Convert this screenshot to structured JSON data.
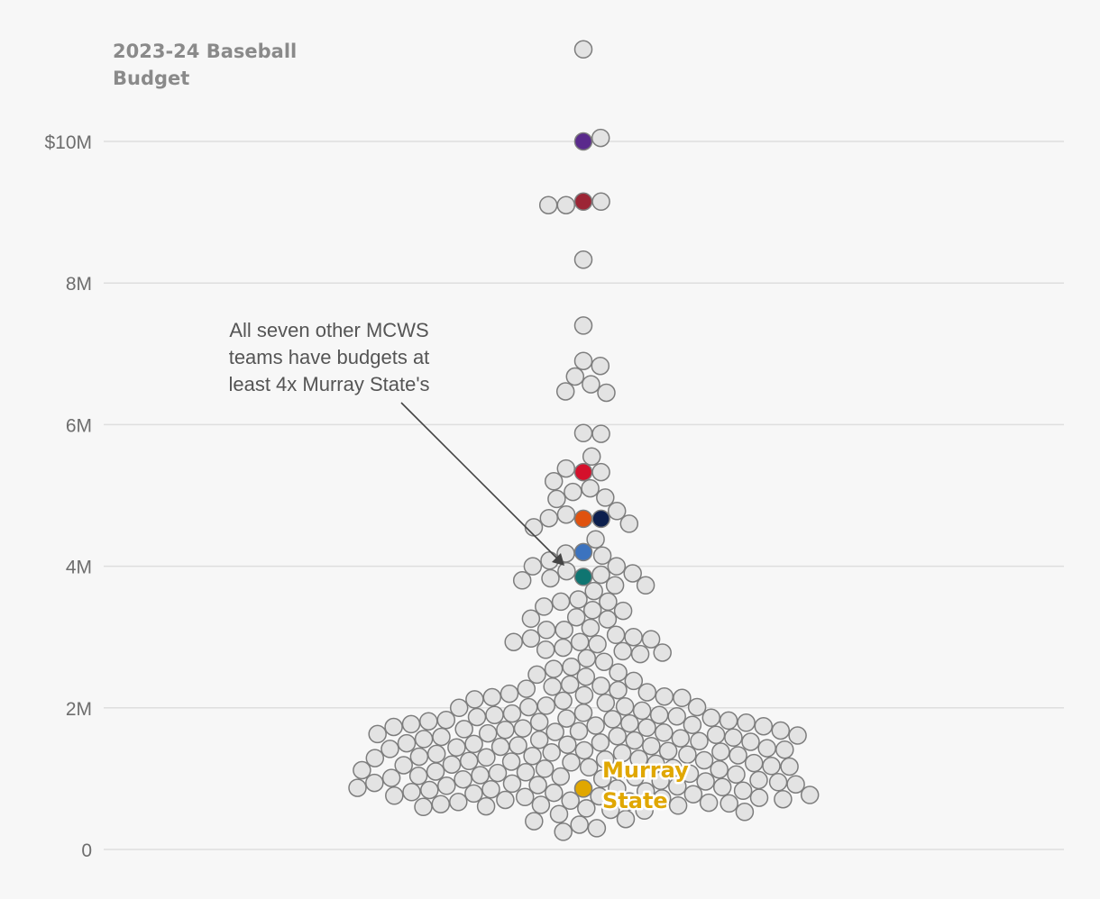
{
  "chart_data": {
    "type": "scatter",
    "subtype": "beeswarm",
    "title": "2023-24 Baseball Budget",
    "y_tick_labels": [
      "0",
      "2M",
      "4M",
      "6M",
      "8M",
      "$10M"
    ],
    "y_tick_values": [
      0,
      2,
      4,
      6,
      8,
      10
    ],
    "ylim": [
      0,
      10.8
    ],
    "unit": "$M",
    "annotation": "All seven other MCWS teams have budgets at least 4x Murray State's",
    "colors": {
      "dot_fill": "#e3e3e3",
      "dot_stroke": "#7d7d7d",
      "murray": "#e0a700",
      "annotation": "#555555"
    },
    "highlighted": [
      {
        "label": "Murray State",
        "value": 0.86,
        "color": "#e0a700"
      },
      {
        "label": "",
        "value": 3.85,
        "color": "#0f7571"
      },
      {
        "label": "",
        "value": 4.2,
        "color": "#3c73bf"
      },
      {
        "label": "",
        "value": 4.67,
        "color": "#e0520f"
      },
      {
        "label": "",
        "value": 4.67,
        "color": "#0c1f4d"
      },
      {
        "label": "",
        "value": 5.33,
        "color": "#d4102b"
      },
      {
        "label": "",
        "value": 9.15,
        "color": "#9c2535"
      },
      {
        "label": "",
        "value": 10.0,
        "color": "#5a2a8c"
      }
    ],
    "values": [
      11.3,
      10.05,
      9.15,
      9.1,
      9.1,
      8.33,
      7.4,
      6.9,
      6.83,
      6.68,
      6.57,
      6.47,
      6.45,
      5.88,
      5.87,
      5.55,
      5.38,
      5.33,
      5.2,
      5.1,
      5.05,
      4.97,
      4.95,
      4.78,
      4.73,
      4.68,
      4.6,
      4.55,
      4.38,
      4.18,
      4.15,
      4.08,
      4.0,
      4.0,
      3.93,
      3.9,
      3.88,
      3.83,
      3.8,
      3.73,
      3.73,
      3.65,
      3.53,
      3.5,
      3.5,
      3.43,
      3.38,
      3.37,
      3.28,
      3.26,
      3.25,
      3.13,
      3.1,
      3.1,
      3.03,
      3.0,
      2.98,
      2.97,
      2.93,
      2.93,
      2.9,
      2.85,
      2.82,
      2.8,
      2.78,
      2.76,
      2.7,
      2.65,
      2.58,
      2.55,
      2.5,
      2.47,
      2.44,
      2.38,
      2.33,
      2.31,
      2.3,
      2.27,
      2.25,
      2.22,
      2.2,
      2.18,
      2.16,
      2.15,
      2.14,
      2.12,
      2.1,
      2.07,
      2.03,
      2.02,
      2.01,
      2.01,
      2.0,
      1.96,
      1.93,
      1.92,
      1.9,
      1.9,
      1.88,
      1.87,
      1.86,
      1.85,
      1.84,
      1.83,
      1.82,
      1.81,
      1.8,
      1.79,
      1.78,
      1.77,
      1.76,
      1.75,
      1.74,
      1.73,
      1.72,
      1.71,
      1.7,
      1.69,
      1.68,
      1.67,
      1.66,
      1.65,
      1.64,
      1.63,
      1.62,
      1.61,
      1.6,
      1.59,
      1.58,
      1.57,
      1.56,
      1.55,
      1.54,
      1.53,
      1.52,
      1.51,
      1.5,
      1.49,
      1.48,
      1.47,
      1.46,
      1.45,
      1.44,
      1.43,
      1.42,
      1.41,
      1.4,
      1.39,
      1.38,
      1.37,
      1.36,
      1.35,
      1.34,
      1.33,
      1.32,
      1.31,
      1.3,
      1.29,
      1.28,
      1.27,
      1.26,
      1.25,
      1.24,
      1.23,
      1.22,
      1.21,
      1.2,
      1.19,
      1.18,
      1.17,
      1.16,
      1.15,
      1.14,
      1.13,
      1.12,
      1.11,
      1.1,
      1.09,
      1.08,
      1.07,
      1.06,
      1.05,
      1.04,
      1.03,
      1.02,
      1.01,
      1.0,
      0.99,
      0.98,
      0.97,
      0.96,
      0.95,
      0.94,
      0.93,
      0.92,
      0.91,
      0.9,
      0.89,
      0.88,
      0.87,
      0.86,
      0.85,
      0.84,
      0.83,
      0.82,
      0.81,
      0.8,
      0.79,
      0.78,
      0.77,
      0.76,
      0.75,
      0.74,
      0.73,
      0.72,
      0.71,
      0.7,
      0.69,
      0.68,
      0.67,
      0.66,
      0.65,
      0.64,
      0.63,
      0.62,
      0.61,
      0.6,
      0.58,
      0.56,
      0.55,
      0.53,
      0.5,
      0.43,
      0.4,
      0.35,
      0.3,
      0.25
    ]
  }
}
